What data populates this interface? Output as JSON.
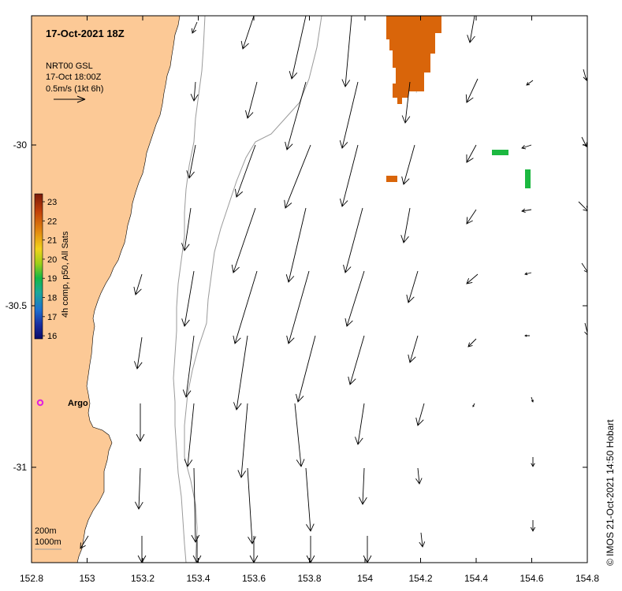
{
  "title": "17-Oct-2021 18Z",
  "product": {
    "line1": "NRT00 GSL",
    "line2": "17-Oct 18:00Z",
    "line3": "0.5m/s (1kt 6h)"
  },
  "colorbar": {
    "label": "4h comp, p50, All Sats",
    "ticks": [
      "23",
      "22",
      "21",
      "20",
      "19",
      "18",
      "17",
      "16"
    ],
    "colors": [
      "#7a1a0a",
      "#c2400a",
      "#e38a10",
      "#f2d21a",
      "#9fd018",
      "#14b845",
      "#1aa89a",
      "#1e6fcf",
      "#1a2fa0",
      "#0a0a6a"
    ]
  },
  "axes": {
    "x_ticks": [
      "152.8",
      "153",
      "153.2",
      "153.4",
      "153.6",
      "153.8",
      "154",
      "154.2",
      "154.4",
      "154.6",
      "154.8"
    ],
    "y_ticks": [
      "-30",
      "-30.5",
      "-31"
    ]
  },
  "contours": {
    "label_200": "200m",
    "label_1000": "1000m"
  },
  "argo": {
    "label": "Argo"
  },
  "credit": "© IMOS 21-Oct-2021 14:50 Hobart",
  "colors": {
    "land": "#fcc996",
    "sst_warm": "#d9650a",
    "sst_green": "#1cb840",
    "argo": "#e020e0"
  },
  "chart_data": {
    "type": "vector_field_map",
    "x_range": [
      152.8,
      154.8
    ],
    "y_range": [
      -31.25,
      -29.6
    ],
    "argo_position": {
      "lon": 152.83,
      "lat": -30.8
    },
    "currents_dominant_direction": "southward to south-southwest, strongest near 153.4-154.1",
    "sst_patches": [
      {
        "lon_range": [
          154.08,
          154.28
        ],
        "lat_range": [
          -29.6,
          -29.87
        ],
        "temp_c": 22.5
      },
      {
        "lon_range": [
          154.08,
          154.12
        ],
        "lat_range": [
          -30.1,
          -30.12
        ],
        "temp_c": 22.5
      },
      {
        "lon_range": [
          154.46,
          154.52
        ],
        "lat_range": [
          -30.02,
          -30.04
        ],
        "temp_c": 19.5
      },
      {
        "lon_range": [
          154.59,
          154.61
        ],
        "lat_range": [
          -30.08,
          -30.14
        ],
        "temp_c": 19.5
      }
    ]
  }
}
